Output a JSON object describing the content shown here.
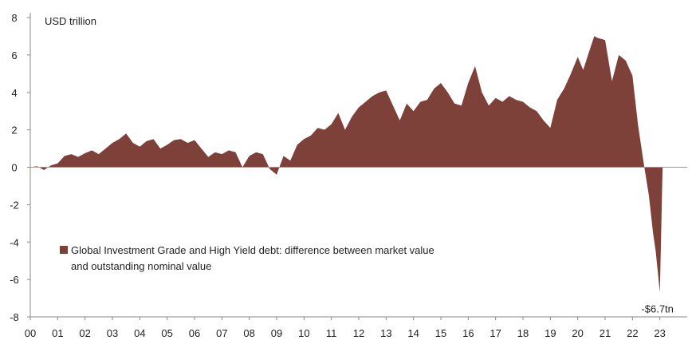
{
  "chart_data": {
    "type": "area",
    "title": "",
    "ylabel": "USD trillion",
    "xlabel": "",
    "ylim": [
      -8,
      8
    ],
    "xlim": [
      2000,
      2024
    ],
    "grid": false,
    "yticks": [
      8,
      6,
      4,
      2,
      0,
      -2,
      -4,
      -6,
      -8
    ],
    "ytick_labels": [
      "8",
      "6",
      "4",
      "2",
      "0",
      "-2",
      "-4",
      "-6",
      "-8"
    ],
    "xtick_labels": [
      "00",
      "01",
      "02",
      "03",
      "04",
      "05",
      "06",
      "07",
      "08",
      "09",
      "10",
      "11",
      "12",
      "13",
      "14",
      "15",
      "16",
      "17",
      "18",
      "19",
      "20",
      "21",
      "22",
      "23"
    ],
    "legend_position": "bottom-left",
    "series": [
      {
        "name": "Global Investment Grade and High Yield debt: difference between market value and outstanding nominal value",
        "color": "#7d4139",
        "x": [
          2000.0,
          2000.25,
          2000.5,
          2000.75,
          2001.0,
          2001.25,
          2001.5,
          2001.75,
          2002.0,
          2002.25,
          2002.5,
          2002.75,
          2003.0,
          2003.25,
          2003.5,
          2003.75,
          2004.0,
          2004.25,
          2004.5,
          2004.75,
          2005.0,
          2005.25,
          2005.5,
          2005.75,
          2006.0,
          2006.25,
          2006.5,
          2006.75,
          2007.0,
          2007.25,
          2007.5,
          2007.75,
          2008.0,
          2008.25,
          2008.5,
          2008.75,
          2009.0,
          2009.25,
          2009.5,
          2009.75,
          2010.0,
          2010.25,
          2010.5,
          2010.75,
          2011.0,
          2011.25,
          2011.5,
          2011.75,
          2012.0,
          2012.25,
          2012.5,
          2012.75,
          2013.0,
          2013.25,
          2013.5,
          2013.75,
          2014.0,
          2014.25,
          2014.5,
          2014.75,
          2015.0,
          2015.25,
          2015.5,
          2015.75,
          2016.0,
          2016.25,
          2016.5,
          2016.75,
          2017.0,
          2017.25,
          2017.5,
          2017.75,
          2018.0,
          2018.25,
          2018.5,
          2018.75,
          2019.0,
          2019.25,
          2019.5,
          2019.75,
          2020.0,
          2020.2,
          2020.4,
          2020.6,
          2020.75,
          2021.0,
          2021.25,
          2021.5,
          2021.75,
          2022.0,
          2022.2,
          2022.4,
          2022.6,
          2022.75,
          2022.85,
          2023.0,
          2023.1
        ],
        "values": [
          0.0,
          0.05,
          -0.15,
          0.1,
          0.2,
          0.6,
          0.7,
          0.55,
          0.75,
          0.9,
          0.7,
          1.0,
          1.3,
          1.5,
          1.8,
          1.3,
          1.1,
          1.4,
          1.5,
          1.0,
          1.2,
          1.45,
          1.5,
          1.3,
          1.45,
          1.0,
          0.55,
          0.8,
          0.7,
          0.9,
          0.8,
          0.0,
          0.6,
          0.8,
          0.7,
          -0.1,
          -0.4,
          0.6,
          0.35,
          1.2,
          1.5,
          1.7,
          2.1,
          2.0,
          2.3,
          2.9,
          2.0,
          2.7,
          3.2,
          3.5,
          3.8,
          4.0,
          4.1,
          3.3,
          2.5,
          3.4,
          3.0,
          3.5,
          3.6,
          4.2,
          4.5,
          4.0,
          3.4,
          3.3,
          4.5,
          5.4,
          4.0,
          3.3,
          3.7,
          3.5,
          3.8,
          3.6,
          3.5,
          3.2,
          3.0,
          2.5,
          2.1,
          3.6,
          4.2,
          5.0,
          5.9,
          5.2,
          6.1,
          7.0,
          6.9,
          6.8,
          4.6,
          6.0,
          5.7,
          4.9,
          2.3,
          0.3,
          -1.5,
          -3.5,
          -4.5,
          -6.7,
          0.0
        ]
      }
    ],
    "annotations": [
      {
        "text": "-$6.7tn",
        "x": 2023.0,
        "y": -6.7
      }
    ]
  }
}
